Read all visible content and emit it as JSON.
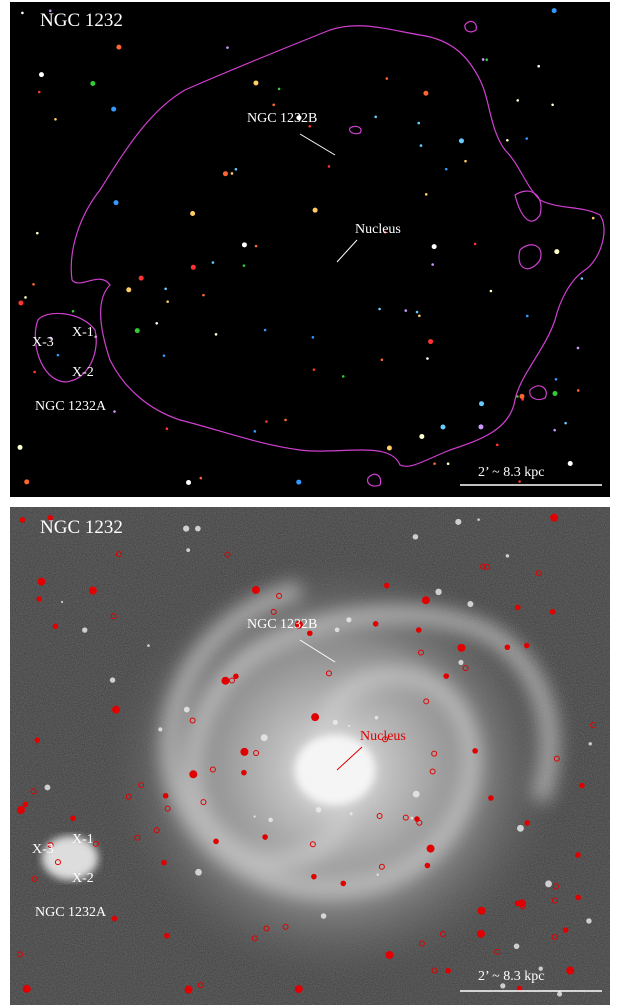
{
  "panels": [
    {
      "title": "NGC 1232",
      "labels": {
        "companion_b": "NGC 1232B",
        "nucleus": "Nucleus",
        "x1": "X-1",
        "x2": "X-2",
        "x3": "X-3",
        "companion_a": "NGC 1232A"
      },
      "scale": "2’ ~ 8.3 kpc"
    },
    {
      "title": "NGC 1232",
      "labels": {
        "companion_b": "NGC 1232B",
        "nucleus": "Nucleus",
        "x1": "X-1",
        "x2": "X-2",
        "x3": "X-3",
        "companion_a": "NGC 1232A"
      },
      "scale": "2’ ~ 8.3 kpc"
    }
  ]
}
